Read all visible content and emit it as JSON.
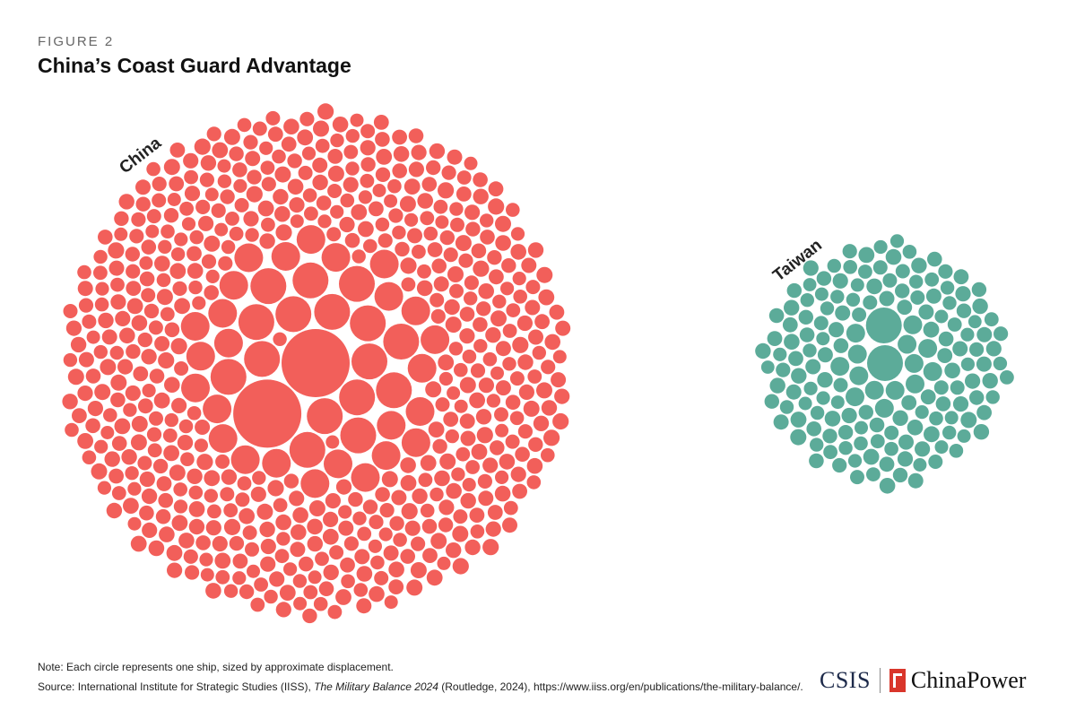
{
  "header": {
    "kicker": "FIGURE 2",
    "title": "China’s Coast Guard Advantage"
  },
  "footer": {
    "note": "Note: Each circle represents one ship, sized by approximate displacement.",
    "source_label": "Source:",
    "source_pre": " International Institute for Strategic Studies (IISS), ",
    "source_italic": "The Military Balance 2024",
    "source_post": " (Routledge, 2024), https://www.iiss.org/en/publications/the-military-balance/.",
    "logo_csis": "CSIS",
    "logo_name": "ChinaPower"
  },
  "chart_data": {
    "type": "packed-circles",
    "title": "China’s Coast Guard Advantage",
    "encoding": "Each circle represents one ship, sized by approximate displacement.",
    "series": [
      {
        "name": "China",
        "color": "#f25f5a",
        "ship_counts": [
          {
            "size_class": "very large",
            "count": 2
          },
          {
            "size_class": "large",
            "count": 16
          },
          {
            "size_class": "medium",
            "count": 26
          },
          {
            "size_class": "small",
            "count": 560
          }
        ]
      },
      {
        "name": "Taiwan",
        "color": "#5cab99",
        "ship_counts": [
          {
            "size_class": "large",
            "count": 2
          },
          {
            "size_class": "medium",
            "count": 14
          },
          {
            "size_class": "small",
            "count": 150
          }
        ]
      }
    ]
  }
}
